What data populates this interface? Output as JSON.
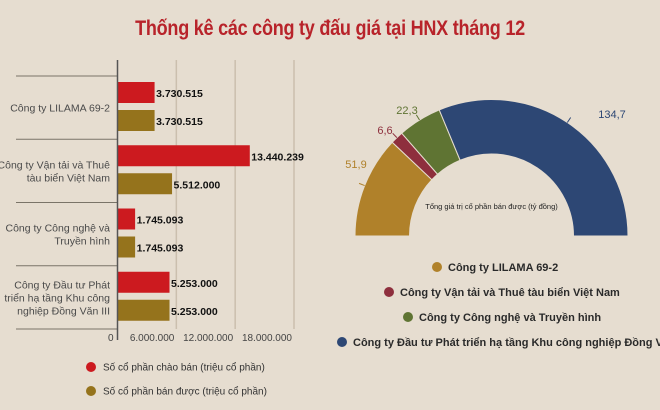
{
  "title": "Thống kê các công ty đấu giá tại HNX tháng 12",
  "chart_data": [
    {
      "type": "bar",
      "orientation": "horizontal",
      "title": "Thống kê các công ty đấu giá tại HNX tháng 12",
      "categories": [
        "Công ty LILAMA 69-2",
        "Công ty Vận tải và Thuê tàu biển Việt Nam",
        "Công ty Công nghệ và Truyền hình",
        "Công ty Đầu tư Phát triển hạ tầng Khu công nghiệp Đồng Văn III"
      ],
      "category_lines": [
        [
          "Công ty LILAMA 69-2"
        ],
        [
          "Công ty Vận tải và Thuê",
          "tàu biển Việt Nam"
        ],
        [
          "Công ty Công nghệ và",
          "Truyền hình"
        ],
        [
          "Công ty Đầu tư Phát",
          "triển hạ tầng Khu công",
          "nghiệp Đồng Văn III"
        ]
      ],
      "series": [
        {
          "name": "Số cổ phần chào bán (triệu cổ phần)",
          "color": "#cc1a1f",
          "values": [
            3730515,
            13440239,
            1745093,
            5253000
          ],
          "labels": [
            "3.730.515",
            "13.440.239",
            "1.745.093",
            "5.253.000"
          ]
        },
        {
          "name": "Số cổ phần bán được (triệu cổ phần)",
          "color": "#95731c",
          "values": [
            3730515,
            5512000,
            1745093,
            5253000
          ],
          "labels": [
            "3.730.515",
            "5.512.000",
            "1.745.093",
            "5.253.000"
          ]
        }
      ],
      "xlim": [
        0,
        18000000
      ],
      "xticks": [
        0,
        6000000,
        12000000,
        18000000
      ],
      "xtick_labels": [
        "0",
        "6.000.000",
        "12.000.000",
        "18.000.000"
      ],
      "grid": true,
      "legend_position": "bottom"
    },
    {
      "type": "pie",
      "variant": "semi-donut",
      "center_label": "Tổng giá trị cổ phần bán được (tỷ đồng)",
      "categories": [
        "Công ty LILAMA 69-2",
        "Công ty Vận tải và Thuê tàu biển Việt Nam",
        "Công ty Công nghệ và Truyền hình",
        "Công ty Đầu tư Phát triển hạ tầng Khu công nghiệp Đồng V..."
      ],
      "values": [
        51.9,
        6.6,
        22.3,
        134.7
      ],
      "value_labels": [
        "51,9",
        "6,6",
        "22,3",
        "134,7"
      ],
      "colors": [
        "#b0812a",
        "#8e2f3d",
        "#5f7433",
        "#2d4774"
      ],
      "legend_position": "bottom"
    }
  ]
}
